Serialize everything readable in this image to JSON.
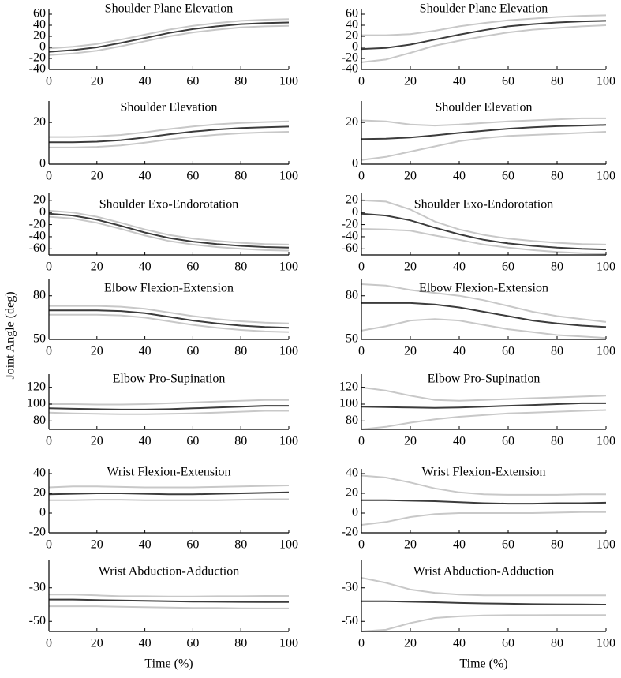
{
  "ylabel": "Joint Angle (deg)",
  "chart_data": [
    {
      "type": "line",
      "title": "Shoulder Plane Elevation",
      "x": [
        0,
        10,
        20,
        30,
        40,
        50,
        60,
        70,
        80,
        90,
        100
      ],
      "xlim": [
        0,
        100
      ],
      "xticks": [
        0,
        20,
        40,
        60,
        80,
        100
      ],
      "ylim": [
        -40,
        60
      ],
      "yticks": [
        -40,
        -20,
        0,
        20,
        40,
        60
      ],
      "series": [
        {
          "color": "#c8c8c8",
          "values": [
            -2,
            1,
            6,
            14,
            23,
            32,
            39,
            44,
            48,
            50,
            51
          ]
        },
        {
          "color": "#c8c8c8",
          "values": [
            -14,
            -11,
            -6,
            2,
            11,
            20,
            27,
            32,
            36,
            38,
            39
          ]
        },
        {
          "color": "#3c3c3c",
          "values": [
            -8,
            -5,
            0,
            8,
            17,
            26,
            33,
            38,
            42,
            44,
            45
          ]
        }
      ]
    },
    {
      "type": "line",
      "title": "Shoulder Plane Elevation",
      "x": [
        0,
        10,
        20,
        30,
        40,
        50,
        60,
        70,
        80,
        90,
        100
      ],
      "xlim": [
        0,
        100
      ],
      "xticks": [
        0,
        20,
        40,
        60,
        80,
        100
      ],
      "ylim": [
        -40,
        60
      ],
      "yticks": [
        -40,
        -20,
        0,
        20,
        40,
        60
      ],
      "series": [
        {
          "color": "#c8c8c8",
          "values": [
            22,
            22,
            24,
            30,
            38,
            44,
            49,
            52,
            55,
            57,
            58
          ]
        },
        {
          "color": "#c8c8c8",
          "values": [
            -27,
            -22,
            -10,
            3,
            12,
            20,
            27,
            32,
            35,
            38,
            40
          ]
        },
        {
          "color": "#3c3c3c",
          "values": [
            -3,
            -1,
            5,
            14,
            23,
            31,
            38,
            42,
            45,
            47,
            48
          ]
        }
      ]
    },
    {
      "type": "line",
      "title": "Shoulder Elevation",
      "x": [
        0,
        10,
        20,
        30,
        40,
        50,
        60,
        70,
        80,
        90,
        100
      ],
      "xlim": [
        0,
        100
      ],
      "xticks": [
        0,
        20,
        40,
        60,
        80,
        100
      ],
      "ylim": [
        0,
        28
      ],
      "yticks": [
        0,
        20
      ],
      "series": [
        {
          "color": "#c8c8c8",
          "values": [
            13,
            13,
            13.3,
            14,
            15.3,
            16.8,
            18.1,
            19.1,
            19.8,
            20.2,
            20.5
          ]
        },
        {
          "color": "#c8c8c8",
          "values": [
            8,
            8,
            8.3,
            9,
            10.3,
            11.8,
            13.1,
            14.1,
            14.8,
            15.2,
            15.5
          ]
        },
        {
          "color": "#3c3c3c",
          "values": [
            10.5,
            10.5,
            10.8,
            11.5,
            12.8,
            14.3,
            15.6,
            16.6,
            17.3,
            17.7,
            18
          ]
        }
      ]
    },
    {
      "type": "line",
      "title": "Shoulder Elevation",
      "x": [
        0,
        10,
        20,
        30,
        40,
        50,
        60,
        70,
        80,
        90,
        100
      ],
      "xlim": [
        0,
        100
      ],
      "xticks": [
        0,
        20,
        40,
        60,
        80,
        100
      ],
      "ylim": [
        0,
        28
      ],
      "yticks": [
        0,
        20
      ],
      "series": [
        {
          "color": "#c8c8c8",
          "values": [
            21,
            20.5,
            19,
            18.5,
            19,
            19.8,
            20.5,
            21,
            21.5,
            22,
            22
          ]
        },
        {
          "color": "#c8c8c8",
          "values": [
            2,
            3.5,
            6,
            8.5,
            11,
            12.5,
            13.5,
            14,
            14.5,
            15,
            15.5
          ]
        },
        {
          "color": "#3c3c3c",
          "values": [
            12,
            12.2,
            12.8,
            13.8,
            15,
            16,
            17,
            17.7,
            18.2,
            18.5,
            18.8
          ]
        }
      ]
    },
    {
      "type": "line",
      "title": "Shoulder Exo-Endorotation",
      "x": [
        0,
        10,
        20,
        30,
        40,
        50,
        60,
        70,
        80,
        90,
        100
      ],
      "xlim": [
        0,
        100
      ],
      "xticks": [
        0,
        20,
        40,
        60,
        80,
        100
      ],
      "ylim": [
        -70,
        25
      ],
      "yticks": [
        -60,
        -40,
        -20,
        0,
        20
      ],
      "series": [
        {
          "color": "#c8c8c8",
          "values": [
            3,
            0,
            -7,
            -17,
            -28,
            -37,
            -43,
            -47,
            -50,
            -52,
            -53
          ]
        },
        {
          "color": "#c8c8c8",
          "values": [
            -7,
            -10,
            -17,
            -27,
            -38,
            -47,
            -53,
            -57,
            -60,
            -62,
            -63
          ]
        },
        {
          "color": "#3c3c3c",
          "values": [
            -2,
            -5,
            -12,
            -22,
            -33,
            -42,
            -48,
            -52,
            -55,
            -57,
            -58
          ]
        }
      ]
    },
    {
      "type": "line",
      "title": "Shoulder Exo-Endorotation",
      "x": [
        0,
        10,
        20,
        30,
        40,
        50,
        60,
        70,
        80,
        90,
        100
      ],
      "xlim": [
        0,
        100
      ],
      "xticks": [
        0,
        20,
        40,
        60,
        80,
        100
      ],
      "ylim": [
        -70,
        25
      ],
      "yticks": [
        -60,
        -40,
        -20,
        0,
        20
      ],
      "series": [
        {
          "color": "#c8c8c8",
          "values": [
            20,
            18,
            5,
            -15,
            -28,
            -37,
            -43,
            -47,
            -50,
            -52,
            -53
          ]
        },
        {
          "color": "#c8c8c8",
          "values": [
            -27,
            -28,
            -30,
            -38,
            -45,
            -53,
            -58,
            -62,
            -65,
            -67,
            -68
          ]
        },
        {
          "color": "#3c3c3c",
          "values": [
            -2,
            -5,
            -13,
            -25,
            -36,
            -45,
            -51,
            -55,
            -58,
            -60,
            -61
          ]
        }
      ]
    },
    {
      "type": "line",
      "title": "Elbow Flexion-Extension",
      "x": [
        0,
        10,
        20,
        30,
        40,
        50,
        60,
        70,
        80,
        90,
        100
      ],
      "xlim": [
        0,
        100
      ],
      "xticks": [
        0,
        20,
        40,
        60,
        80,
        100
      ],
      "ylim": [
        50,
        88
      ],
      "yticks": [
        50,
        80
      ],
      "series": [
        {
          "color": "#c8c8c8",
          "values": [
            73,
            73,
            73,
            72.5,
            71,
            68.5,
            66,
            64,
            62.5,
            61.5,
            61
          ]
        },
        {
          "color": "#c8c8c8",
          "values": [
            67,
            67,
            67,
            66.5,
            65,
            62.5,
            60,
            58,
            56.5,
            55.5,
            55
          ]
        },
        {
          "color": "#3c3c3c",
          "values": [
            70,
            70,
            70,
            69.5,
            68,
            65.5,
            63,
            61,
            59.5,
            58.5,
            58
          ]
        }
      ]
    },
    {
      "type": "line",
      "title": "Elbow Flexion-Extension",
      "x": [
        0,
        10,
        20,
        30,
        40,
        50,
        60,
        70,
        80,
        90,
        100
      ],
      "xlim": [
        0,
        100
      ],
      "xticks": [
        0,
        20,
        40,
        60,
        80,
        100
      ],
      "ylim": [
        50,
        88
      ],
      "yticks": [
        50,
        80
      ],
      "series": [
        {
          "color": "#c8c8c8",
          "values": [
            88,
            87,
            84,
            82,
            80,
            77,
            73,
            69,
            66,
            64,
            62
          ]
        },
        {
          "color": "#c8c8c8",
          "values": [
            56,
            59,
            63,
            64,
            63,
            60,
            57,
            55,
            53,
            52,
            51
          ]
        },
        {
          "color": "#3c3c3c",
          "values": [
            75,
            75,
            75,
            74,
            72,
            69,
            66,
            63,
            61,
            59.5,
            58.5
          ]
        }
      ]
    },
    {
      "type": "line",
      "title": "Elbow Pro-Supination",
      "x": [
        0,
        10,
        20,
        30,
        40,
        50,
        60,
        70,
        80,
        90,
        100
      ],
      "xlim": [
        0,
        100
      ],
      "xticks": [
        0,
        20,
        40,
        60,
        80,
        100
      ],
      "ylim": [
        70,
        130
      ],
      "yticks": [
        80,
        100,
        120
      ],
      "series": [
        {
          "color": "#c8c8c8",
          "values": [
            100,
            100,
            99.5,
            99.5,
            100,
            101,
            102,
            103,
            104,
            105,
            105
          ]
        },
        {
          "color": "#c8c8c8",
          "values": [
            90,
            89,
            88.5,
            88,
            88,
            88.5,
            89,
            90,
            91,
            92,
            92
          ]
        },
        {
          "color": "#3c3c3c",
          "values": [
            95,
            94.5,
            94,
            93.5,
            93.5,
            94,
            95,
            96,
            97,
            98,
            98
          ]
        }
      ]
    },
    {
      "type": "line",
      "title": "Elbow Pro-Supination",
      "x": [
        0,
        10,
        20,
        30,
        40,
        50,
        60,
        70,
        80,
        90,
        100
      ],
      "xlim": [
        0,
        100
      ],
      "xticks": [
        0,
        20,
        40,
        60,
        80,
        100
      ],
      "ylim": [
        70,
        130
      ],
      "yticks": [
        80,
        100,
        120
      ],
      "series": [
        {
          "color": "#c8c8c8",
          "values": [
            120,
            116,
            110,
            105,
            104,
            105,
            106,
            107,
            108,
            109,
            110
          ]
        },
        {
          "color": "#c8c8c8",
          "values": [
            70,
            73,
            78,
            82,
            85,
            87,
            89,
            90,
            91,
            92,
            93
          ]
        },
        {
          "color": "#3c3c3c",
          "values": [
            97,
            96.5,
            96,
            95.5,
            96,
            97,
            98,
            99,
            100,
            101,
            101
          ]
        }
      ]
    },
    {
      "type": "line",
      "title": "Wrist Flexion-Extension",
      "x": [
        0,
        10,
        20,
        30,
        40,
        50,
        60,
        70,
        80,
        90,
        100
      ],
      "xlim": [
        0,
        100
      ],
      "xticks": [
        0,
        20,
        40,
        60,
        80,
        100
      ],
      "ylim": [
        -20,
        40
      ],
      "yticks": [
        -20,
        0,
        20,
        40
      ],
      "series": [
        {
          "color": "#c8c8c8",
          "values": [
            26,
            27,
            27,
            26.5,
            26,
            26,
            26,
            26.5,
            27,
            27.5,
            28
          ]
        },
        {
          "color": "#c8c8c8",
          "values": [
            13,
            13,
            13.5,
            13.5,
            13,
            13,
            13,
            13,
            13.5,
            14,
            14
          ]
        },
        {
          "color": "#3c3c3c",
          "values": [
            19,
            19.5,
            20,
            20,
            19.5,
            19,
            19,
            19.5,
            20,
            20.5,
            21
          ]
        }
      ]
    },
    {
      "type": "line",
      "title": "Wrist Flexion-Extension",
      "x": [
        0,
        10,
        20,
        30,
        40,
        50,
        60,
        70,
        80,
        90,
        100
      ],
      "xlim": [
        0,
        100
      ],
      "xticks": [
        0,
        20,
        40,
        60,
        80,
        100
      ],
      "ylim": [
        -20,
        40
      ],
      "yticks": [
        -20,
        0,
        20,
        40
      ],
      "series": [
        {
          "color": "#c8c8c8",
          "values": [
            38,
            36,
            31,
            25,
            21,
            19,
            18.5,
            18.5,
            18.5,
            19,
            19
          ]
        },
        {
          "color": "#c8c8c8",
          "values": [
            -12,
            -9,
            -4,
            -1,
            0,
            0,
            0,
            0,
            0.5,
            1,
            1
          ]
        },
        {
          "color": "#3c3c3c",
          "values": [
            13,
            13,
            12.5,
            12,
            11,
            10,
            9.5,
            9.5,
            10,
            10,
            10.5
          ]
        }
      ]
    },
    {
      "type": "line",
      "title": "Wrist Abduction-Adduction",
      "xlabel": "Time (%)",
      "x": [
        0,
        10,
        20,
        30,
        40,
        50,
        60,
        70,
        80,
        90,
        100
      ],
      "xlim": [
        0,
        100
      ],
      "xticks": [
        0,
        20,
        40,
        60,
        80,
        100
      ],
      "ylim": [
        -56,
        -16
      ],
      "yticks": [
        -50,
        -30
      ],
      "series": [
        {
          "color": "#c8c8c8",
          "values": [
            -34,
            -34,
            -34.5,
            -35,
            -35,
            -35.2,
            -35.2,
            -35,
            -35,
            -34.8,
            -34.8
          ]
        },
        {
          "color": "#c8c8c8",
          "values": [
            -41,
            -41,
            -41,
            -41.3,
            -41.5,
            -41.8,
            -42,
            -42,
            -42.2,
            -42.3,
            -42.3
          ]
        },
        {
          "color": "#3c3c3c",
          "values": [
            -37,
            -37,
            -37.3,
            -37.5,
            -37.8,
            -38,
            -38.2,
            -38.3,
            -38.4,
            -38.5,
            -38.5
          ]
        }
      ]
    },
    {
      "type": "line",
      "title": "Wrist Abduction-Adduction",
      "xlabel": "Time (%)",
      "x": [
        0,
        10,
        20,
        30,
        40,
        50,
        60,
        70,
        80,
        90,
        100
      ],
      "xlim": [
        0,
        100
      ],
      "xticks": [
        0,
        20,
        40,
        60,
        80,
        100
      ],
      "ylim": [
        -56,
        -16
      ],
      "yticks": [
        -50,
        -30
      ],
      "series": [
        {
          "color": "#c8c8c8",
          "values": [
            -24,
            -27,
            -31,
            -33,
            -34,
            -34.5,
            -34.5,
            -34.5,
            -34.5,
            -34.5,
            -34.5
          ]
        },
        {
          "color": "#c8c8c8",
          "values": [
            -56,
            -55,
            -51,
            -48,
            -47,
            -46.5,
            -46.3,
            -46.3,
            -46.2,
            -46.2,
            -46.2
          ]
        },
        {
          "color": "#3c3c3c",
          "values": [
            -38,
            -38,
            -38.3,
            -38.6,
            -39,
            -39.3,
            -39.5,
            -39.7,
            -39.8,
            -39.9,
            -40
          ]
        }
      ]
    }
  ]
}
